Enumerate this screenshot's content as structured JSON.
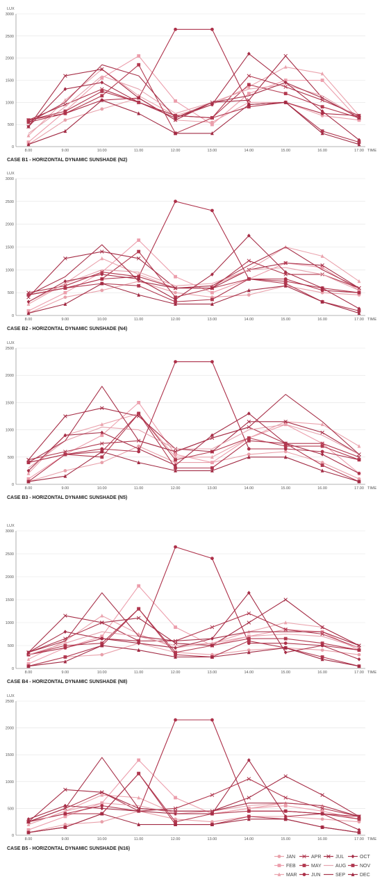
{
  "colors": {
    "JAN": "#e8a0aa",
    "FEB": "#ec9eac",
    "MAR": "#eaa3ad",
    "APR": "#b0374e",
    "MAY": "#b33a50",
    "JUN": "#ad3049",
    "JUL": "#a52c45",
    "AUG": "#e5a3ae",
    "SEP": "#a8334b",
    "OCT": "#a62e47",
    "NOV": "#b03850",
    "DEC": "#a12a43"
  },
  "markers": {
    "JAN": "circle",
    "FEB": "square",
    "MAR": "triangle",
    "APR": "x",
    "MAY": "square",
    "JUN": "circle",
    "JUL": "x",
    "AUG": "none",
    "SEP": "none",
    "OCT": "diamond",
    "NOV": "square",
    "DEC": "triangle"
  },
  "legend": {
    "columns": [
      [
        "JAN",
        "FEB",
        "MAR"
      ],
      [
        "APR",
        "MAY",
        "JUN"
      ],
      [
        "JUL",
        "AUG",
        "SEP"
      ],
      [
        "OCT",
        "NOV",
        "DEC"
      ]
    ]
  },
  "chart_data": [
    {
      "type": "line",
      "title": "CASE B1 - HORIZONTAL DYNAMIC SUNSHADE (N2)",
      "ylabel": "LUX",
      "xlabel": "TIME",
      "ylim": [
        0,
        3000
      ],
      "yticks": [
        0,
        500,
        1000,
        1500,
        2000,
        2500,
        3000
      ],
      "categories": [
        "8.00",
        "9.00",
        "10.00",
        "11.00",
        "12.00",
        "13.00",
        "14.00",
        "15.00",
        "16.00",
        "17.00"
      ],
      "series": [
        {
          "name": "JAN",
          "values": [
            50,
            600,
            850,
            1100,
            600,
            550,
            1000,
            1000,
            700,
            600
          ]
        },
        {
          "name": "FEB",
          "values": [
            100,
            800,
            1550,
            2050,
            1030,
            500,
            1200,
            1500,
            1500,
            600
          ]
        },
        {
          "name": "MAR",
          "values": [
            250,
            1050,
            1750,
            1150,
            700,
            950,
            1350,
            1800,
            1650,
            700
          ]
        },
        {
          "name": "APR",
          "values": [
            600,
            950,
            1300,
            1000,
            700,
            650,
            1600,
            1350,
            1050,
            700
          ]
        },
        {
          "name": "MAY",
          "values": [
            550,
            750,
            1150,
            1850,
            300,
            650,
            1400,
            1200,
            900,
            650
          ]
        },
        {
          "name": "JUN",
          "values": [
            600,
            750,
            1050,
            1100,
            2650,
            2650,
            950,
            1000,
            750,
            700
          ]
        },
        {
          "name": "JUL",
          "values": [
            450,
            1600,
            1750,
            1100,
            600,
            1000,
            1050,
            2050,
            1100,
            650
          ]
        },
        {
          "name": "AUG",
          "values": [
            300,
            900,
            1600,
            1300,
            750,
            1000,
            1300,
            1400,
            1150,
            650
          ]
        },
        {
          "name": "SEP",
          "values": [
            550,
            1000,
            1850,
            1600,
            650,
            1000,
            1150,
            1450,
            1100,
            650
          ]
        },
        {
          "name": "OCT",
          "values": [
            450,
            1300,
            1450,
            1000,
            650,
            950,
            2100,
            1450,
            800,
            150
          ]
        },
        {
          "name": "NOV",
          "values": [
            600,
            800,
            1250,
            1000,
            700,
            650,
            900,
            1000,
            350,
            100
          ]
        },
        {
          "name": "DEC",
          "values": [
            50,
            350,
            1050,
            750,
            300,
            300,
            950,
            1000,
            300,
            50
          ]
        }
      ]
    },
    {
      "type": "line",
      "title": "CASE B2 - HORIZONTAL DYNAMIC SUNSHADE (N4)",
      "ylabel": "LUX",
      "xlabel": "TIME",
      "ylim": [
        0,
        3000
      ],
      "yticks": [
        0,
        500,
        1000,
        1500,
        2000,
        2500,
        3000
      ],
      "categories": [
        "8.00",
        "9.00",
        "10.00",
        "11.00",
        "12.00",
        "13.00",
        "14.00",
        "15.00",
        "16.00",
        "17.00"
      ],
      "series": [
        {
          "name": "JAN",
          "values": [
            50,
            400,
            550,
            750,
            500,
            400,
            450,
            650,
            500,
            450
          ]
        },
        {
          "name": "FEB",
          "values": [
            100,
            500,
            950,
            1650,
            850,
            500,
            800,
            1150,
            1050,
            550
          ]
        },
        {
          "name": "MAR",
          "values": [
            250,
            700,
            1250,
            900,
            600,
            650,
            1000,
            1500,
            1300,
            750
          ]
        },
        {
          "name": "APR",
          "values": [
            500,
            650,
            950,
            850,
            600,
            600,
            1200,
            900,
            900,
            600
          ]
        },
        {
          "name": "MAY",
          "values": [
            450,
            600,
            800,
            1400,
            400,
            600,
            800,
            750,
            600,
            500
          ]
        },
        {
          "name": "JUN",
          "values": [
            450,
            600,
            800,
            850,
            2500,
            2300,
            800,
            800,
            550,
            500
          ]
        },
        {
          "name": "JUL",
          "values": [
            400,
            1250,
            1400,
            1250,
            600,
            600,
            1000,
            1150,
            1100,
            600
          ]
        },
        {
          "name": "AUG",
          "values": [
            300,
            700,
            1000,
            950,
            650,
            700,
            1000,
            1050,
            900,
            550
          ]
        },
        {
          "name": "SEP",
          "values": [
            450,
            850,
            1550,
            750,
            600,
            650,
            1100,
            1500,
            1000,
            600
          ]
        },
        {
          "name": "OCT",
          "values": [
            300,
            750,
            900,
            800,
            350,
            900,
            1750,
            950,
            600,
            150
          ]
        },
        {
          "name": "NOV",
          "values": [
            450,
            600,
            700,
            650,
            300,
            350,
            800,
            700,
            300,
            100
          ]
        },
        {
          "name": "DEC",
          "values": [
            50,
            250,
            700,
            450,
            250,
            250,
            550,
            650,
            300,
            50
          ]
        }
      ]
    },
    {
      "type": "line",
      "title": "CASE B3 - HORIZONTAL DYNAMIC SUNSHADE (N5)",
      "ylabel": "LUX",
      "xlabel": "TIME",
      "ylim": [
        0,
        2500
      ],
      "yticks": [
        0,
        500,
        1000,
        1500,
        2000,
        2500
      ],
      "categories": [
        "8.00",
        "9.00",
        "10.00",
        "11.00",
        "12.00",
        "13.00",
        "14.00",
        "15.00",
        "16.00",
        "17.00"
      ],
      "series": [
        {
          "name": "JAN",
          "values": [
            50,
            250,
            400,
            700,
            400,
            400,
            550,
            600,
            400,
            100
          ]
        },
        {
          "name": "FEB",
          "values": [
            100,
            550,
            900,
            1500,
            550,
            400,
            850,
            1100,
            750,
            200
          ]
        },
        {
          "name": "MAR",
          "values": [
            200,
            900,
            1100,
            1300,
            500,
            500,
            850,
            1150,
            1100,
            700
          ]
        },
        {
          "name": "APR",
          "values": [
            450,
            600,
            750,
            800,
            600,
            850,
            1050,
            750,
            750,
            500
          ]
        },
        {
          "name": "MAY",
          "values": [
            400,
            550,
            500,
            1300,
            450,
            600,
            850,
            700,
            700,
            450
          ]
        },
        {
          "name": "JUN",
          "values": [
            400,
            550,
            650,
            600,
            2250,
            2250,
            650,
            650,
            600,
            450
          ]
        },
        {
          "name": "JUL",
          "values": [
            450,
            1250,
            1400,
            1250,
            650,
            600,
            1150,
            1150,
            950,
            550
          ]
        },
        {
          "name": "AUG",
          "values": [
            300,
            800,
            1050,
            1000,
            650,
            650,
            1000,
            1100,
            900,
            550
          ]
        },
        {
          "name": "SEP",
          "values": [
            400,
            800,
            1800,
            800,
            600,
            850,
            1050,
            1650,
            1150,
            550
          ]
        },
        {
          "name": "OCT",
          "values": [
            250,
            900,
            950,
            650,
            350,
            900,
            1300,
            750,
            550,
            200
          ]
        },
        {
          "name": "NOV",
          "values": [
            50,
            550,
            600,
            1300,
            300,
            300,
            800,
            750,
            350,
            50
          ]
        },
        {
          "name": "DEC",
          "values": [
            50,
            150,
            600,
            400,
            250,
            250,
            500,
            500,
            250,
            50
          ]
        }
      ]
    },
    {
      "type": "line",
      "title": "CASE B4 - HORIZONTAL DYNAMIC SUNSHADE (N8)",
      "ylabel": "LUX",
      "xlabel": "TIME",
      "ylim": [
        0,
        3000
      ],
      "yticks": [
        0,
        500,
        1000,
        1500,
        2000,
        2500,
        3000
      ],
      "categories": [
        "8.00",
        "9.00",
        "10.00",
        "11.00",
        "12.00",
        "13.00",
        "14.00",
        "15.00",
        "16.00",
        "17.00"
      ],
      "series": [
        {
          "name": "JAN",
          "values": [
            50,
            250,
            300,
            550,
            350,
            300,
            400,
            450,
            400,
            300
          ]
        },
        {
          "name": "FEB",
          "values": [
            100,
            450,
            700,
            1800,
            900,
            500,
            700,
            850,
            800,
            400
          ]
        },
        {
          "name": "MAR",
          "values": [
            200,
            600,
            1150,
            750,
            450,
            550,
            800,
            1000,
            900,
            500
          ]
        },
        {
          "name": "APR",
          "values": [
            350,
            650,
            1000,
            600,
            600,
            900,
            1200,
            850,
            750,
            450
          ]
        },
        {
          "name": "MAY",
          "values": [
            300,
            500,
            550,
            1300,
            350,
            500,
            650,
            650,
            550,
            400
          ]
        },
        {
          "name": "JUN",
          "values": [
            300,
            450,
            650,
            600,
            2650,
            2400,
            550,
            550,
            500,
            400
          ]
        },
        {
          "name": "JUL",
          "values": [
            350,
            1150,
            1000,
            1100,
            550,
            500,
            1000,
            1500,
            900,
            500
          ]
        },
        {
          "name": "AUG",
          "values": [
            300,
            550,
            800,
            700,
            500,
            550,
            700,
            750,
            700,
            450
          ]
        },
        {
          "name": "SEP",
          "values": [
            350,
            600,
            1650,
            700,
            600,
            650,
            800,
            800,
            800,
            500
          ]
        },
        {
          "name": "OCT",
          "values": [
            350,
            800,
            650,
            550,
            450,
            650,
            1650,
            350,
            500,
            200
          ]
        },
        {
          "name": "NOV",
          "values": [
            50,
            250,
            500,
            1300,
            300,
            250,
            600,
            450,
            250,
            50
          ]
        },
        {
          "name": "DEC",
          "values": [
            50,
            150,
            500,
            400,
            250,
            250,
            350,
            450,
            200,
            50
          ]
        }
      ]
    },
    {
      "type": "line",
      "title": "CASE B5 - HORIZONTAL DYNAMIC SUNSHADE (N16)",
      "ylabel": "LUX",
      "xlabel": "TIME",
      "ylim": [
        0,
        2500
      ],
      "yticks": [
        0,
        500,
        1000,
        1500,
        2000,
        2500
      ],
      "categories": [
        "8.00",
        "9.00",
        "10.00",
        "11.00",
        "12.00",
        "13.00",
        "14.00",
        "15.00",
        "16.00",
        "17.00"
      ],
      "series": [
        {
          "name": "JAN",
          "values": [
            50,
            200,
            250,
            450,
            300,
            250,
            350,
            350,
            300,
            250
          ]
        },
        {
          "name": "FEB",
          "values": [
            100,
            350,
            600,
            1400,
            700,
            400,
            500,
            550,
            450,
            300
          ]
        },
        {
          "name": "MAR",
          "values": [
            200,
            450,
            750,
            700,
            400,
            400,
            500,
            600,
            550,
            350
          ]
        },
        {
          "name": "APR",
          "values": [
            250,
            500,
            800,
            450,
            500,
            750,
            1050,
            700,
            500,
            350
          ]
        },
        {
          "name": "MAY",
          "values": [
            250,
            400,
            400,
            1150,
            250,
            400,
            450,
            450,
            400,
            300
          ]
        },
        {
          "name": "JUN",
          "values": [
            250,
            400,
            550,
            450,
            2150,
            2150,
            450,
            450,
            400,
            350
          ]
        },
        {
          "name": "JUL",
          "values": [
            250,
            850,
            800,
            500,
            450,
            450,
            700,
            1100,
            750,
            350
          ]
        },
        {
          "name": "AUG",
          "values": [
            200,
            450,
            600,
            550,
            400,
            450,
            550,
            600,
            550,
            350
          ]
        },
        {
          "name": "SEP",
          "values": [
            250,
            500,
            1450,
            500,
            450,
            450,
            600,
            600,
            550,
            350
          ]
        },
        {
          "name": "OCT",
          "values": [
            300,
            550,
            500,
            450,
            400,
            400,
            1400,
            350,
            400,
            100
          ]
        },
        {
          "name": "NOV",
          "values": [
            50,
            150,
            400,
            1150,
            200,
            200,
            350,
            300,
            150,
            50
          ]
        },
        {
          "name": "DEC",
          "values": [
            50,
            150,
            400,
            200,
            200,
            200,
            300,
            300,
            150,
            50
          ]
        }
      ]
    }
  ]
}
